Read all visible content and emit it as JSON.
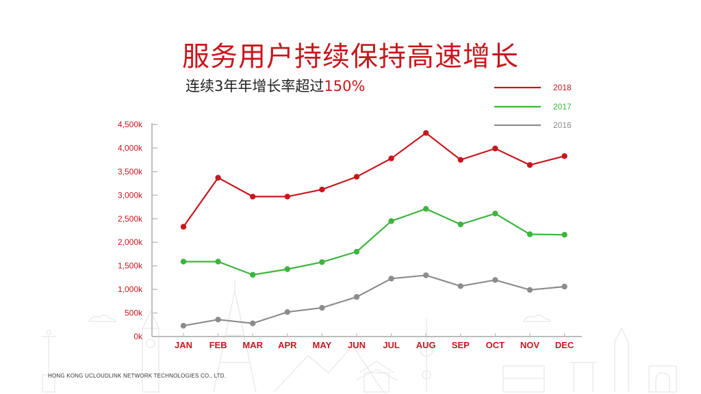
{
  "title": "服务用户持续保持高速增长",
  "subtitle": {
    "text": "连续3年年增长率超过",
    "highlight": "150%"
  },
  "footer": "HONG KONG UCLOUDLINK NETWORK TECHNOLOGIES CO., LTD.",
  "colors": {
    "2018": "#c8161d",
    "2017": "#3db43d",
    "2016": "#8c8c8c",
    "axis": "#c8161d"
  },
  "chart_data": {
    "type": "line",
    "categories": [
      "JAN",
      "FEB",
      "MAR",
      "APR",
      "MAY",
      "JUN",
      "JUL",
      "AUG",
      "SEP",
      "OCT",
      "NOV",
      "DEC"
    ],
    "y_ticks": [
      "0k",
      "500k",
      "1,000k",
      "1,500k",
      "2,000k",
      "2,500k",
      "3,000k",
      "3,500k",
      "4,000k",
      "4,500k"
    ],
    "ylim": [
      0,
      4500
    ],
    "legend_position": "top-right",
    "series": [
      {
        "name": "2018",
        "values": [
          2330,
          3370,
          2970,
          2970,
          3120,
          3390,
          3780,
          4320,
          3750,
          3990,
          3640,
          3830
        ]
      },
      {
        "name": "2017",
        "values": [
          1590,
          1590,
          1310,
          1430,
          1580,
          1800,
          2450,
          2710,
          2380,
          2610,
          2170,
          2160
        ]
      },
      {
        "name": "2016",
        "values": [
          230,
          360,
          280,
          520,
          610,
          840,
          1230,
          1300,
          1070,
          1200,
          990,
          1060
        ]
      }
    ]
  }
}
